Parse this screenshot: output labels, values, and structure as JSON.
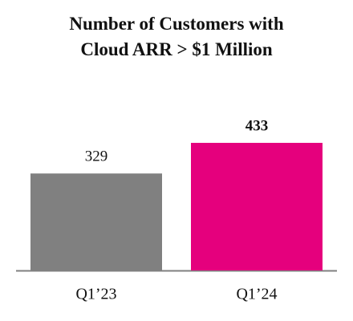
{
  "chart_data": {
    "type": "bar",
    "title": "Number of Customers with Cloud ARR > $1 Million",
    "categories": [
      "Q1’23",
      "Q1’24"
    ],
    "values": [
      329,
      433
    ],
    "colors": [
      "#808080",
      "#e5007d"
    ]
  }
}
